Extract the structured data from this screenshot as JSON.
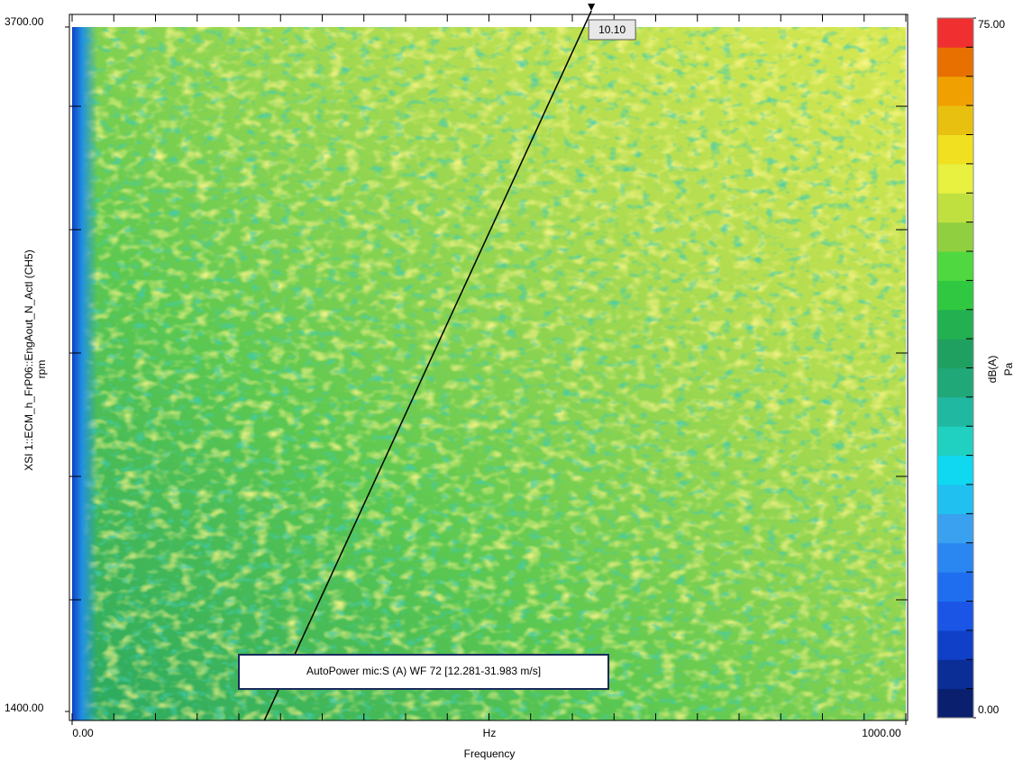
{
  "chart_data": {
    "type": "heatmap",
    "xlabel": "Frequency",
    "xunit": "Hz",
    "ylabel": "XSI 1::ECM_h_FrP06::EngAout_N_Actl (CH5)",
    "yunit": "rpm",
    "xlim": [
      0,
      1000
    ],
    "xticks": [
      {
        "value": 0,
        "label": "0.00"
      },
      {
        "value": 1000,
        "label": "1000.00"
      }
    ],
    "ylim": [
      1400,
      3700
    ],
    "yticks": [
      {
        "value": 1400,
        "label": "1400.00"
      },
      {
        "value": 3700,
        "label": "3700.00"
      }
    ],
    "clim": [
      0,
      75
    ],
    "cticks": [
      {
        "value": 0,
        "label": "0.00"
      },
      {
        "value": 75,
        "label": "75.00"
      }
    ],
    "cunit": "dB(A)",
    "cunit2": "Pa",
    "colorscale": [
      "#0a1f6e",
      "#0b2d96",
      "#1040c8",
      "#1a55e6",
      "#1f6ef0",
      "#2a86f0",
      "#3aa0f0",
      "#20c0f0",
      "#10d8f0",
      "#20d0c0",
      "#20b8a0",
      "#20a878",
      "#20a060",
      "#22b050",
      "#30c840",
      "#50d840",
      "#90d040",
      "#c0e040",
      "#e8f040",
      "#f0e020",
      "#e8c010",
      "#f0a000",
      "#e87000",
      "#f03030"
    ],
    "cursor": {
      "value": 10.1,
      "label": "10.10"
    },
    "series_label": "AutoPower mic:S (A) WF 72 [12.281-31.983 m/s]"
  }
}
